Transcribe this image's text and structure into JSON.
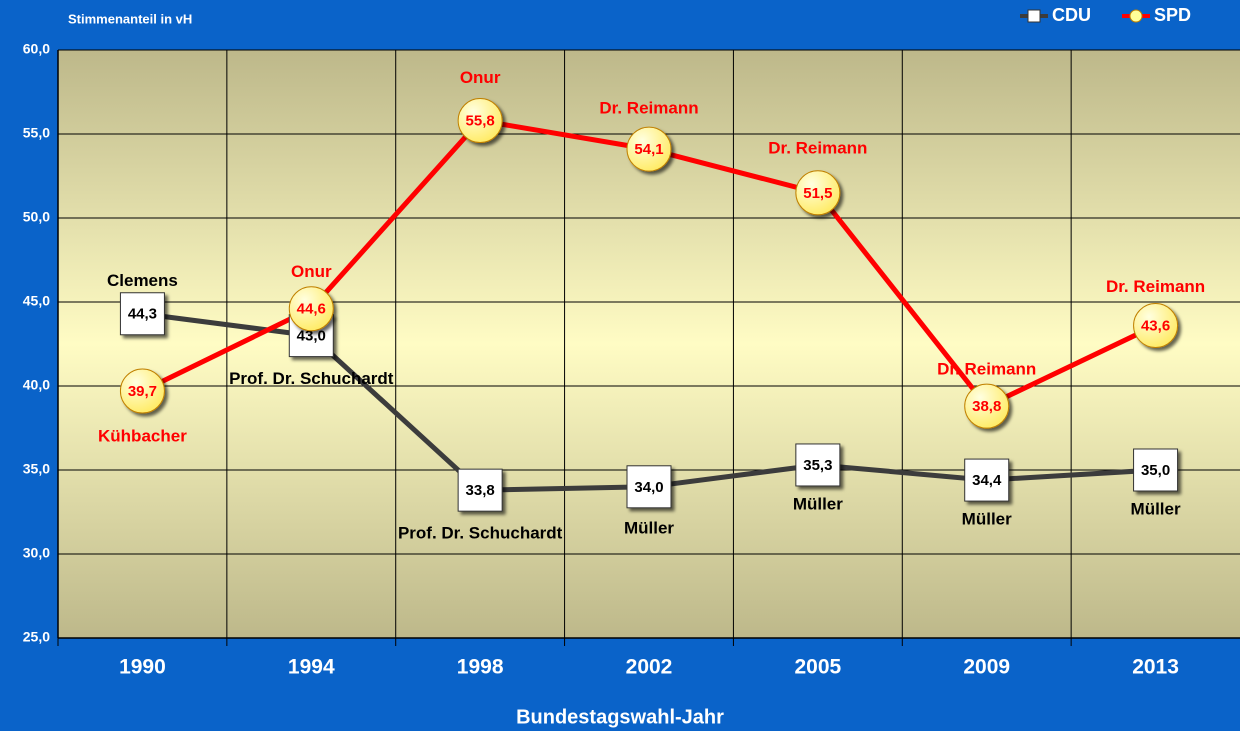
{
  "chart_data": {
    "type": "line",
    "title": "Stimmenanteil in vH",
    "x_label": "Bundestagswahl-Jahr",
    "categories": [
      "1990",
      "1994",
      "1998",
      "2002",
      "2005",
      "2009",
      "2013"
    ],
    "ylim": [
      25,
      60
    ],
    "yticks": [
      {
        "value": 25,
        "label": "25,0"
      },
      {
        "value": 30,
        "label": "30,0"
      },
      {
        "value": 35,
        "label": "35,0"
      },
      {
        "value": 40,
        "label": "40,0"
      },
      {
        "value": 45,
        "label": "45,0"
      },
      {
        "value": 50,
        "label": "50,0"
      },
      {
        "value": 55,
        "label": "55,0"
      },
      {
        "value": 60,
        "label": "60,0"
      }
    ],
    "grid": true,
    "legend": "top-right",
    "series": [
      {
        "name": "CDU",
        "color": "#3c3c3c",
        "marker_color": "#ffffff",
        "values": [
          44.3,
          43.0,
          33.8,
          34.0,
          35.3,
          34.4,
          35.0
        ],
        "value_labels": [
          "44,3",
          "43,0",
          "33,8",
          "34,0",
          "35,3",
          "34,4",
          "35,0"
        ],
        "candidates": [
          "Clemens",
          "Prof. Dr. Schuchardt",
          "Prof. Dr. Schuchardt",
          "Müller",
          "Müller",
          "Müller",
          "Müller"
        ]
      },
      {
        "name": "SPD",
        "color": "#ff0000",
        "marker_color": "#ffff99",
        "values": [
          39.7,
          44.6,
          55.8,
          54.1,
          51.5,
          38.8,
          43.6
        ],
        "value_labels": [
          "39,7",
          "44,6",
          "55,8",
          "54,1",
          "51,5",
          "38,8",
          "43,6"
        ],
        "candidates": [
          "Kühbacher",
          "Onur",
          "Onur",
          "Dr. Reimann",
          "Dr. Reimann",
          "Dr. Reimann",
          "Dr. Reimann"
        ]
      }
    ]
  }
}
